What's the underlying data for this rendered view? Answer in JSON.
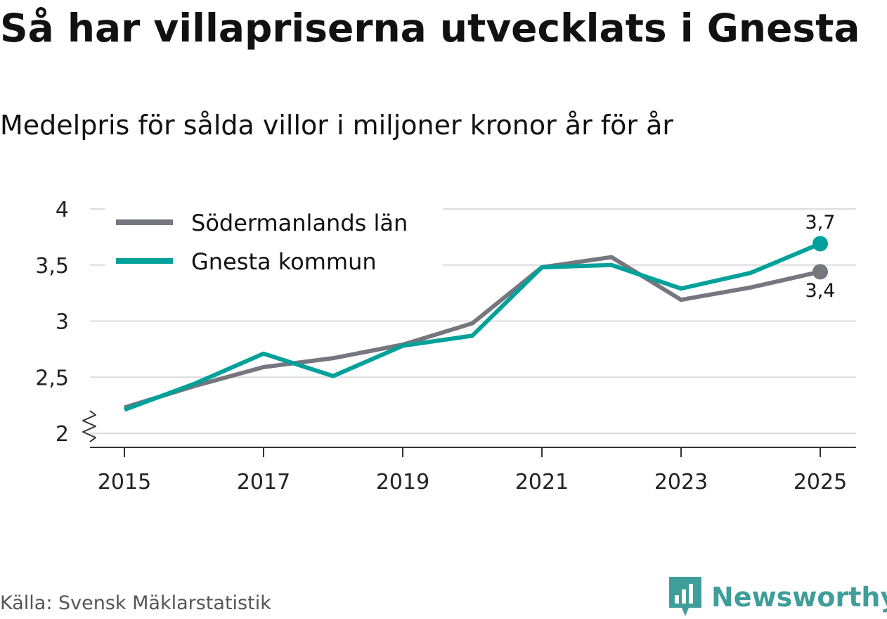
{
  "title": "Så har villapriserna utvecklats i Gnesta",
  "subtitle": "Medelpris för sålda villor i miljoner kronor år för år",
  "source": "Källa: Svensk Mäklarstatistik",
  "brand": "Newsworthy",
  "colors": {
    "lan": "#76767e",
    "kommun": "#00a19a",
    "grid": "#dcdcdc",
    "axis": "#333333",
    "brand": "#3f9e9a"
  },
  "chart_data": {
    "type": "line",
    "title": "Så har villapriserna utvecklats i Gnesta",
    "subtitle": "Medelpris för sålda villor i miljoner kronor år för år",
    "xlabel": "",
    "ylabel": "",
    "x": [
      2015,
      2016,
      2017,
      2018,
      2019,
      2020,
      2021,
      2022,
      2023,
      2024,
      2025
    ],
    "xlim": [
      2015,
      2025
    ],
    "x_ticks": [
      "2015",
      "2017",
      "2019",
      "2021",
      "2023",
      "2025"
    ],
    "x_tick_values": [
      2015,
      2017,
      2019,
      2021,
      2023,
      2025
    ],
    "ylim": [
      2,
      4
    ],
    "y_ticks": [
      "2",
      "2,5",
      "3",
      "3,5",
      "4"
    ],
    "y_tick_values": [
      2,
      2.5,
      3,
      3.5,
      4
    ],
    "grid": true,
    "legend": "top-left",
    "series": [
      {
        "name": "Södermanlands län",
        "color": "#76767e",
        "values": [
          2.23,
          2.42,
          2.59,
          2.67,
          2.79,
          2.98,
          3.48,
          3.57,
          3.19,
          3.3,
          3.44
        ],
        "end_label": "3,4"
      },
      {
        "name": "Gnesta kommun",
        "color": "#00a19a",
        "values": [
          2.21,
          2.44,
          2.71,
          2.51,
          2.78,
          2.87,
          3.48,
          3.5,
          3.29,
          3.43,
          3.69
        ],
        "end_label": "3,7"
      }
    ]
  }
}
